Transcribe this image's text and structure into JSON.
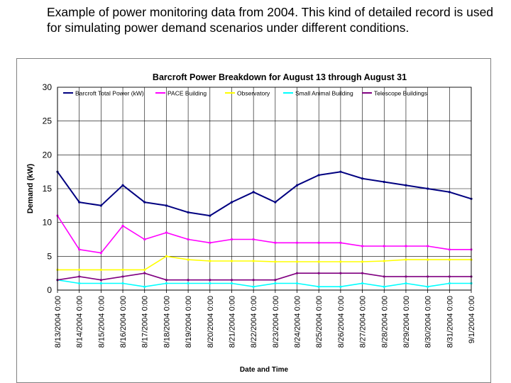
{
  "caption": "Example of power monitoring data from 2004.  This kind of detailed record is used for simulating power demand scenarios under different conditions.",
  "chart_data": {
    "type": "line",
    "title": "Barcroft Power Breakdown for August 13 through August 31",
    "xlabel": "Date and Time",
    "ylabel": "Demand (kW)",
    "ylim": [
      0,
      30
    ],
    "yticks": [
      "0",
      "5",
      "10",
      "15",
      "20",
      "25",
      "30"
    ],
    "categories": [
      "8/13/2004 0:00",
      "8/14/2004 0:00",
      "8/15/2004 0:00",
      "8/16/2004 0:00",
      "8/17/2004 0:00",
      "8/18/2004 0:00",
      "8/19/2004 0:00",
      "8/20/2004 0:00",
      "8/21/2004 0:00",
      "8/22/2004 0:00",
      "8/23/2004 0:00",
      "8/24/2004 0:00",
      "8/25/2004 0:00",
      "8/26/2004 0:00",
      "8/27/2004 0:00",
      "8/28/2004 0:00",
      "8/29/2004 0:00",
      "8/30/2004 0:00",
      "8/31/2004 0:00",
      "9/1/2004 0:00"
    ],
    "grid": true,
    "legend_position": "top",
    "series": [
      {
        "name": "Barcroft Total Power (kW)",
        "color": "#000080",
        "values": [
          17.5,
          13.0,
          12.5,
          15.5,
          13.0,
          12.5,
          11.5,
          11.0,
          13.0,
          14.5,
          13.0,
          15.5,
          17.0,
          17.5,
          16.5,
          16.0,
          15.5,
          15.0,
          14.5,
          13.5
        ]
      },
      {
        "name": "PACE Building",
        "color": "#ff00ff",
        "values": [
          11.0,
          6.0,
          5.5,
          9.5,
          7.5,
          8.5,
          7.5,
          7.0,
          7.5,
          7.5,
          7.0,
          7.0,
          7.0,
          7.0,
          6.5,
          6.5,
          6.5,
          6.5,
          6.0,
          6.0
        ]
      },
      {
        "name": "Observatory",
        "color": "#ffff00",
        "values": [
          3.0,
          3.0,
          3.0,
          3.0,
          3.0,
          5.0,
          4.5,
          4.3,
          4.3,
          4.3,
          4.2,
          4.2,
          4.2,
          4.2,
          4.2,
          4.3,
          4.5,
          4.5,
          4.5,
          4.5
        ]
      },
      {
        "name": "Small Animal Building",
        "color": "#00ffff",
        "values": [
          1.5,
          1.0,
          1.0,
          1.0,
          0.5,
          1.0,
          1.0,
          1.0,
          1.0,
          0.5,
          1.0,
          1.0,
          0.5,
          0.5,
          1.0,
          0.5,
          1.0,
          0.5,
          1.0,
          1.0
        ]
      },
      {
        "name": "Telescope Buildings",
        "color": "#800080",
        "values": [
          1.5,
          2.0,
          1.5,
          2.0,
          2.5,
          1.5,
          1.5,
          1.5,
          1.5,
          1.5,
          1.5,
          2.5,
          2.5,
          2.5,
          2.5,
          2.0,
          2.0,
          2.0,
          2.0,
          2.0
        ]
      }
    ]
  }
}
